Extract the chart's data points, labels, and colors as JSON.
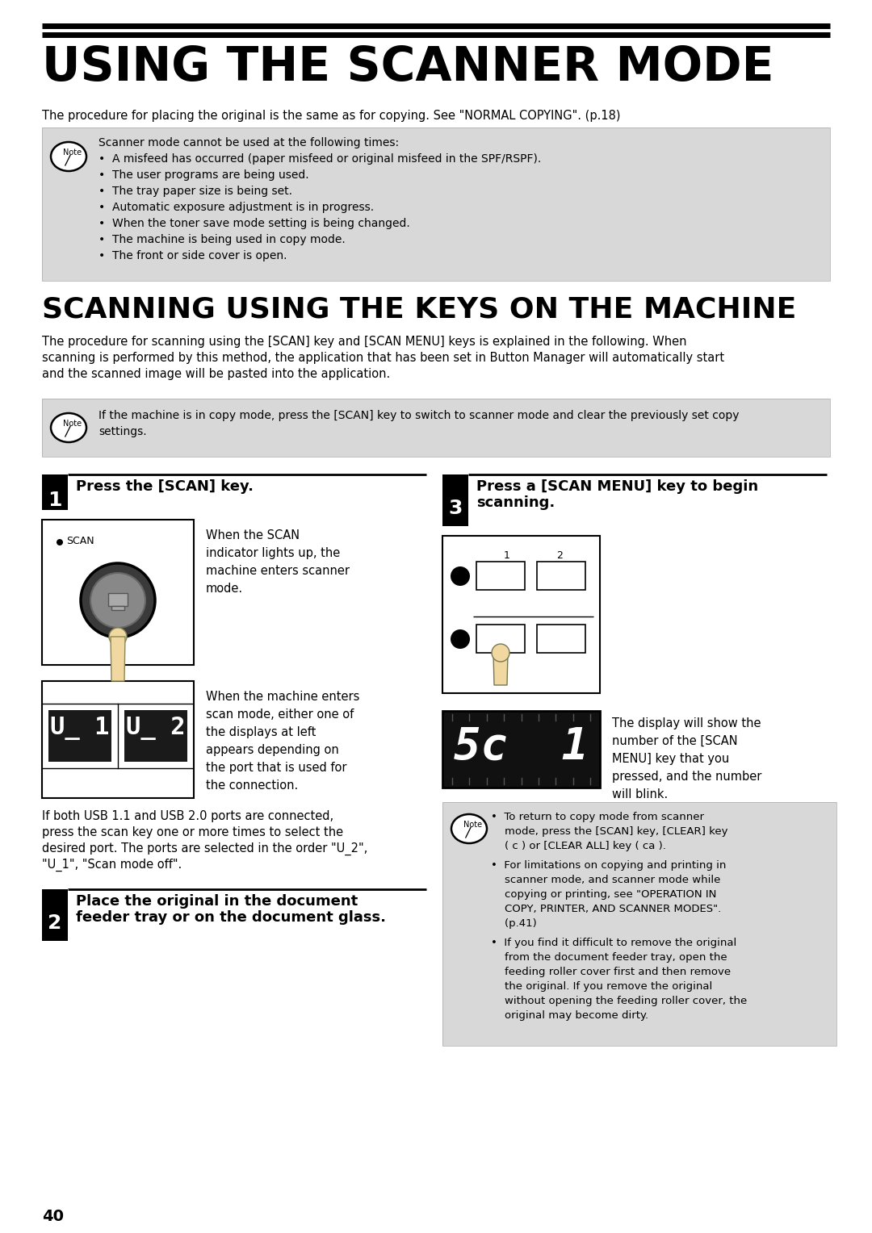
{
  "title": "USING THE SCANNER MODE",
  "subtitle": "SCANNING USING THE KEYS ON THE MACHINE",
  "bg_color": "#ffffff",
  "note_bg": "#d8d8d8",
  "procedure_text": "The procedure for placing the original is the same as for copying. See \"NORMAL COPYING\". (p.18)",
  "note1_lines": [
    "Scanner mode cannot be used at the following times:",
    "•  A misfeed has occurred (paper misfeed or original misfeed in the SPF/RSPF).",
    "•  The user programs are being used.",
    "•  The tray paper size is being set.",
    "•  Automatic exposure adjustment is in progress.",
    "•  When the toner save mode setting is being changed.",
    "•  The machine is being used in copy mode.",
    "•  The front or side cover is open."
  ],
  "scanning_intro_lines": [
    "The procedure for scanning using the [SCAN] key and [SCAN MENU] keys is explained in the following. When",
    "scanning is performed by this method, the application that has been set in Button Manager will automatically start",
    "and the scanned image will be pasted into the application."
  ],
  "note2_line1": "If the machine is in copy mode, press the [SCAN] key to switch to scanner mode and clear the previously set copy",
  "note2_line2": "settings.",
  "step1_title": "Press the [SCAN] key.",
  "step1_desc_lines": [
    "When the SCAN",
    "indicator lights up, the",
    "machine enters scanner",
    "mode."
  ],
  "usb_desc_lines": [
    "When the machine enters",
    "scan mode, either one of",
    "the displays at left",
    "appears depending on",
    "the port that is used for",
    "the connection."
  ],
  "usb_text_lines": [
    "If both USB 1.1 and USB 2.0 ports are connected,",
    "press the scan key one or more times to select the",
    "desired port. The ports are selected in the order \"U_2\",",
    "\"U_1\", \"Scan mode off\"."
  ],
  "step2_title_line1": "Place the original in the document",
  "step2_title_line2": "feeder tray or on the document glass.",
  "step3_title_line1": "Press a [SCAN MENU] key to begin",
  "step3_title_line2": "scanning.",
  "step3_desc_lines": [
    "The display will show the",
    "number of the [SCAN",
    "MENU] key that you",
    "pressed, and the number",
    "will blink."
  ],
  "note3_bullets": [
    [
      "•  To return to copy mode from scanner",
      "    mode, press the [SCAN] key, [CLEAR] key",
      "    ( c ) or [CLEAR ALL] key ( ca )."
    ],
    [
      "•  For limitations on copying and printing in",
      "    scanner mode, and scanner mode while",
      "    copying or printing, see \"OPERATION IN",
      "    COPY, PRINTER, AND SCANNER MODES\".",
      "    (p.41)"
    ],
    [
      "•  If you find it difficult to remove the original",
      "    from the document feeder tray, open the",
      "    feeding roller cover first and then remove",
      "    the original. If you remove the original",
      "    without opening the feeding roller cover, the",
      "    original may become dirty."
    ]
  ],
  "page_number": "40"
}
